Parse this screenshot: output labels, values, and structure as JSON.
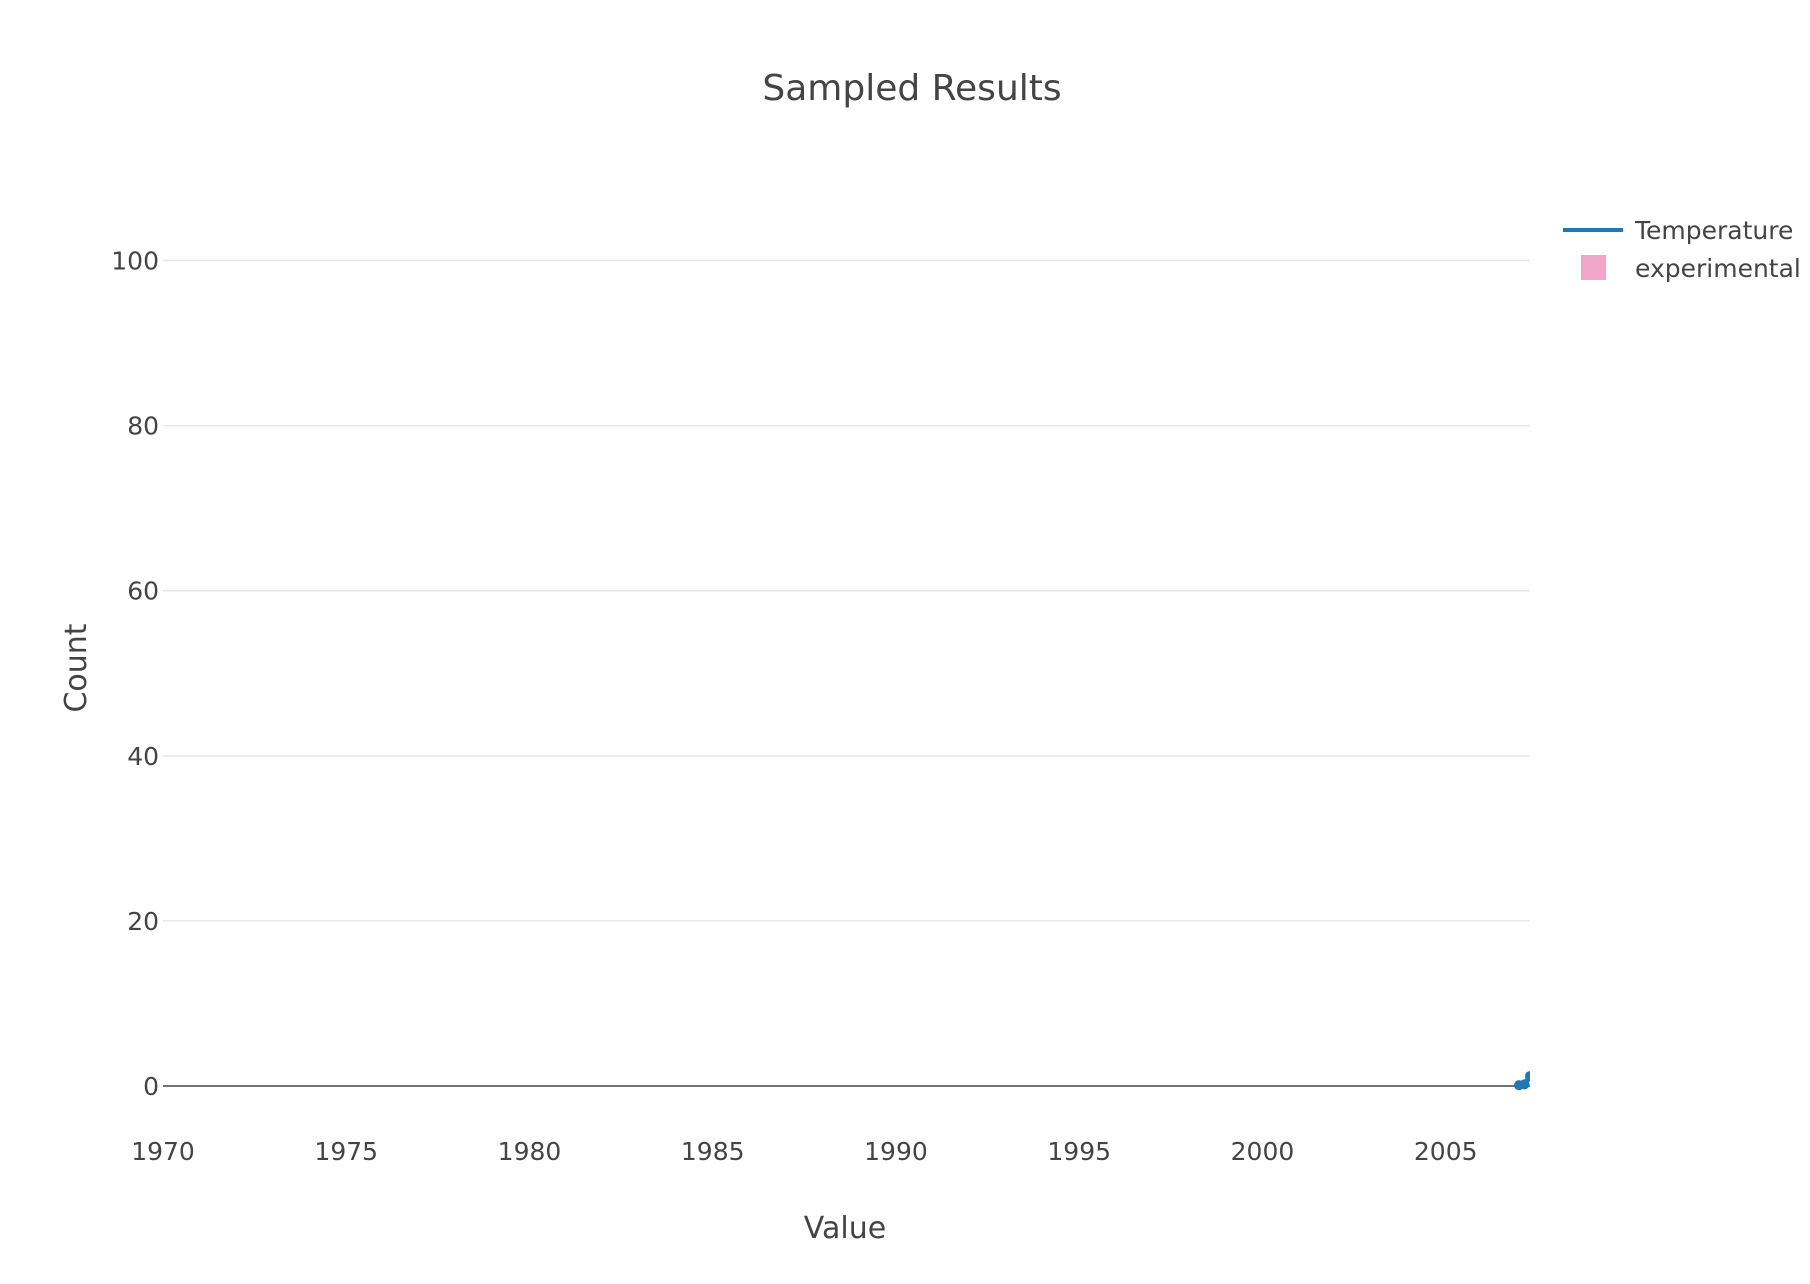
{
  "chart_data": {
    "type": "line",
    "title": "Sampled Results",
    "xlabel": "Value",
    "ylabel": "Count",
    "xlim": [
      1970,
      2007.3
    ],
    "ylim": [
      0,
      110
    ],
    "x_ticks": [
      "1970",
      "1975",
      "1980",
      "1985",
      "1990",
      "1995",
      "2000",
      "2005"
    ],
    "y_ticks": [
      "0",
      "20",
      "40",
      "60",
      "80",
      "100"
    ],
    "grid": true,
    "legend_position": "top-right",
    "series": [
      {
        "name": "Temperature",
        "type": "line",
        "color": "#1f77b4",
        "x": [
          2007.0,
          2007.15,
          2007.3
        ],
        "y": [
          0.1,
          0.2,
          1.2
        ]
      },
      {
        "name": "experimental",
        "type": "bar",
        "color": "#f0a6c8",
        "x": [],
        "y": []
      }
    ]
  }
}
